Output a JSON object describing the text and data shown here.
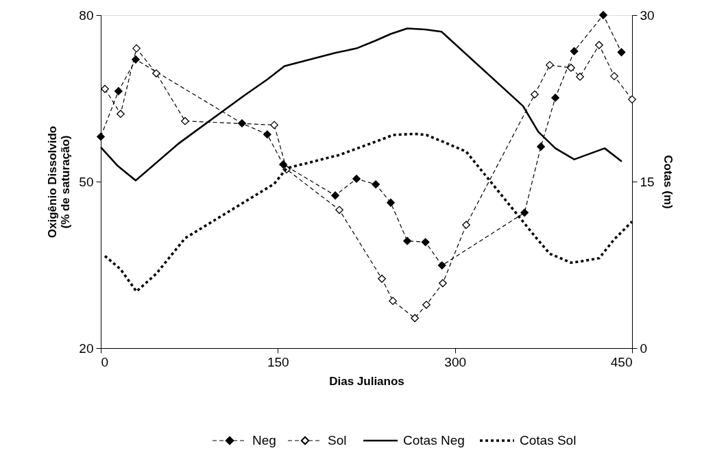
{
  "chart_data": {
    "type": "line",
    "xlabel": "Dias Julianos",
    "ylabel": "Oxigênio Dissolvido\n(% de saturação)",
    "y2label": "Cotas (m)",
    "xlim": [
      0,
      450
    ],
    "xticks": [
      0,
      150,
      300,
      450
    ],
    "ylim": [
      20,
      80
    ],
    "yticks": [
      20,
      50,
      80
    ],
    "y2lim": [
      0,
      30
    ],
    "y2ticks": [
      0,
      15,
      30
    ],
    "grid": false,
    "legend": "bottom",
    "series": [
      {
        "name": "Neg",
        "color": "#000000",
        "marker": "diamond",
        "line_style": "dashed",
        "x": [
          0,
          15,
          29.6,
          119.6,
          141,
          154.5,
          198.6,
          216.6,
          232.9,
          245.6,
          259.6,
          275,
          289,
          358.9,
          372.8,
          385,
          401,
          425.6,
          441
        ],
        "values": [
          58.1,
          66.3,
          72.0,
          60.5,
          58.5,
          53.1,
          47.5,
          50.5,
          49.5,
          46.2,
          39.3,
          39.1,
          34.9,
          44.4,
          56.3,
          65.1,
          73.5,
          80,
          73.3
        ]
      },
      {
        "name": "Sol",
        "color": "#000000",
        "marker": "diamond",
        "line_style": "dashed",
        "x": [
          3.5,
          16.8,
          30.2,
          47,
          71.4,
          146.9,
          157.4,
          202.1,
          238.1,
          247.4,
          266,
          275.8,
          289.7,
          309.5,
          367.5,
          380.3,
          398.3,
          405.9,
          422.1,
          434.9,
          450
        ],
        "values": [
          66.7,
          62.2,
          74.0,
          69.5,
          60.9,
          60.2,
          52.2,
          44.9,
          32.5,
          28.5,
          25.4,
          27.8,
          31.7,
          42.2,
          65.7,
          71.0,
          70.5,
          68.9,
          74.6,
          69.0,
          64.8
        ]
      },
      {
        "name": "Cotas Neg",
        "color": "#000000",
        "marker": "none",
        "line_style": "solid",
        "axis": "y2",
        "x": [
          0,
          14.5,
          29.6,
          65.6,
          120.8,
          141,
          155.6,
          170,
          199,
          216.6,
          232.8,
          245.6,
          259.6,
          274.7,
          288.6,
          357.7,
          370.5,
          385,
          401,
          426.8,
          441.3
        ],
        "values": [
          18.1,
          16.4,
          15.1,
          18.4,
          22.7,
          24.2,
          25.4,
          25.8,
          26.6,
          27.0,
          27.7,
          28.3,
          28.8,
          28.7,
          28.5,
          21.8,
          19.5,
          18.0,
          17.0,
          18.0,
          16.8
        ]
      },
      {
        "name": "Cotas Sol",
        "color": "#000000",
        "marker": "none",
        "line_style": "dotted",
        "axis": "y2",
        "x": [
          3.5,
          16.8,
          30.2,
          47,
          71.4,
          146.9,
          157.4,
          202.1,
          238.1,
          247.4,
          266,
          275.8,
          289.7,
          309.5,
          367.5,
          380.3,
          398.3,
          405.9,
          422.1,
          434.9,
          450
        ],
        "values": [
          8.3,
          7.1,
          5.1,
          6.7,
          9.9,
          14.8,
          16.2,
          17.4,
          18.8,
          19.2,
          19.3,
          19.2,
          18.6,
          17.7,
          10.1,
          8.5,
          7.7,
          7.8,
          8.1,
          9.8,
          11.4
        ]
      }
    ]
  }
}
